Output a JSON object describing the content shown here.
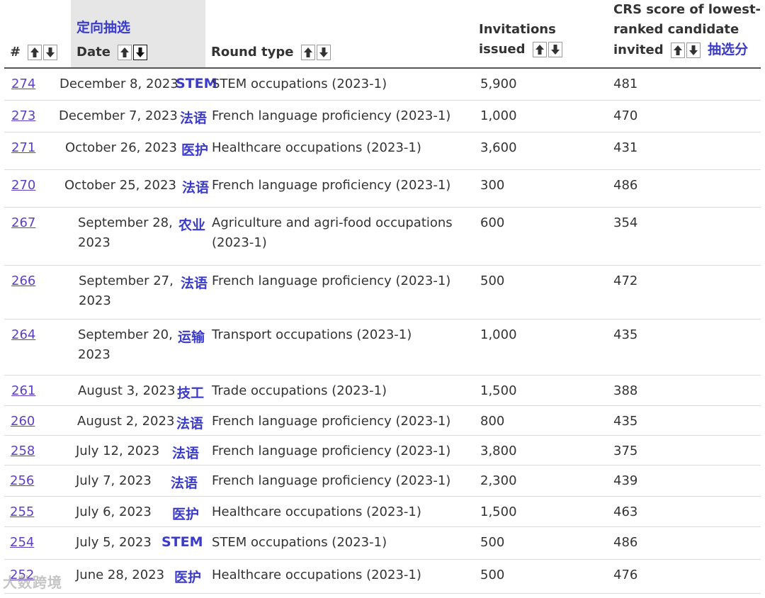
{
  "header": {
    "num_label": "#",
    "date_label": "Date",
    "date_annotation": "定向抽选",
    "round_type_label": "Round type",
    "invitations_label_1": "Invitations",
    "invitations_label_2": "issued",
    "crs_label_1": "CRS score of lowest-",
    "crs_label_2": "ranked candidate",
    "crs_label_3": "invited",
    "crs_annotation": "抽选分"
  },
  "rows": [
    {
      "num": "274",
      "date_1": "December 8, 2023",
      "date_2": "",
      "tag": "STEM",
      "round": "STEM occupations (2023-1)",
      "round_2": "",
      "invitations": "5,900",
      "crs": "481"
    },
    {
      "num": "273",
      "date_1": "December 7, 2023",
      "date_2": "",
      "tag": "法语",
      "round": "French language proficiency (2023-1)",
      "round_2": "",
      "invitations": "1,000",
      "crs": "470"
    },
    {
      "num": "271",
      "date_1": "October 26, 2023",
      "date_2": "",
      "tag": "医护",
      "round": "Healthcare occupations (2023-1)",
      "round_2": "",
      "invitations": "3,600",
      "crs": "431"
    },
    {
      "num": "270",
      "date_1": "October 25, 2023",
      "date_2": "",
      "tag": "法语",
      "round": "French language proficiency (2023-1)",
      "round_2": "",
      "invitations": "300",
      "crs": "486"
    },
    {
      "num": "267",
      "date_1": "September 28,",
      "date_2": "2023",
      "tag": "农业",
      "round": "Agriculture and agri-food occupations",
      "round_2": "(2023-1)",
      "invitations": "600",
      "crs": "354"
    },
    {
      "num": "266",
      "date_1": "September 27,",
      "date_2": "2023",
      "tag": "法语",
      "round": "French language proficiency (2023-1)",
      "round_2": "",
      "invitations": "500",
      "crs": "472"
    },
    {
      "num": "264",
      "date_1": "September 20,",
      "date_2": "2023",
      "tag": "运输",
      "round": "Transport occupations (2023-1)",
      "round_2": "",
      "invitations": "1,000",
      "crs": "435"
    },
    {
      "num": "261",
      "date_1": "August 3, 2023",
      "date_2": "",
      "tag": "技工",
      "round": "Trade occupations (2023-1)",
      "round_2": "",
      "invitations": "1,500",
      "crs": "388"
    },
    {
      "num": "260",
      "date_1": "August 2, 2023",
      "date_2": "",
      "tag": "法语",
      "round": "French language proficiency (2023-1)",
      "round_2": "",
      "invitations": "800",
      "crs": "435"
    },
    {
      "num": "258",
      "date_1": "July 12, 2023",
      "date_2": "",
      "tag": "法语",
      "round": "French language proficiency (2023-1)",
      "round_2": "",
      "invitations": "3,800",
      "crs": "375"
    },
    {
      "num": "256",
      "date_1": "July 7, 2023",
      "date_2": "",
      "tag": "法语",
      "round": "French language proficiency (2023-1)",
      "round_2": "",
      "invitations": "2,300",
      "crs": "439"
    },
    {
      "num": "255",
      "date_1": "July 6, 2023",
      "date_2": "",
      "tag": "医护",
      "round": "Healthcare occupations (2023-1)",
      "round_2": "",
      "invitations": "1,500",
      "crs": "463"
    },
    {
      "num": "254",
      "date_1": "July 5, 2023",
      "date_2": "",
      "tag": "STEM",
      "round": "STEM occupations (2023-1)",
      "round_2": "",
      "invitations": "500",
      "crs": "486"
    },
    {
      "num": "252",
      "date_1": "June 28, 2023",
      "date_2": "",
      "tag": "医护",
      "round": "Healthcare occupations (2023-1)",
      "round_2": "",
      "invitations": "500",
      "crs": "476"
    }
  ],
  "watermark": "大数跨境",
  "colors": {
    "link": "#5b3fc9",
    "annotation": "#3b3bcc",
    "date_header_bg": "#e6e6e6"
  }
}
